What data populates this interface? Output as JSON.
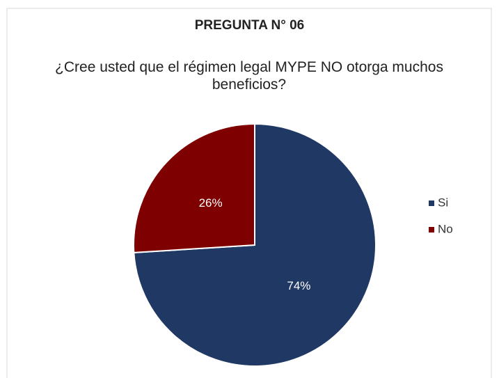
{
  "chart_data": {
    "type": "pie",
    "title": "PREGUNTA N° 06",
    "subtitle": "¿Cree usted que el régimen legal MYPE NO otorga muchos beneficios?",
    "categories": [
      "Si",
      "No"
    ],
    "values": [
      74,
      26
    ],
    "value_labels": [
      "74%",
      "26%"
    ],
    "colors": [
      "#203864",
      "#7f0000"
    ],
    "legend": "right"
  }
}
